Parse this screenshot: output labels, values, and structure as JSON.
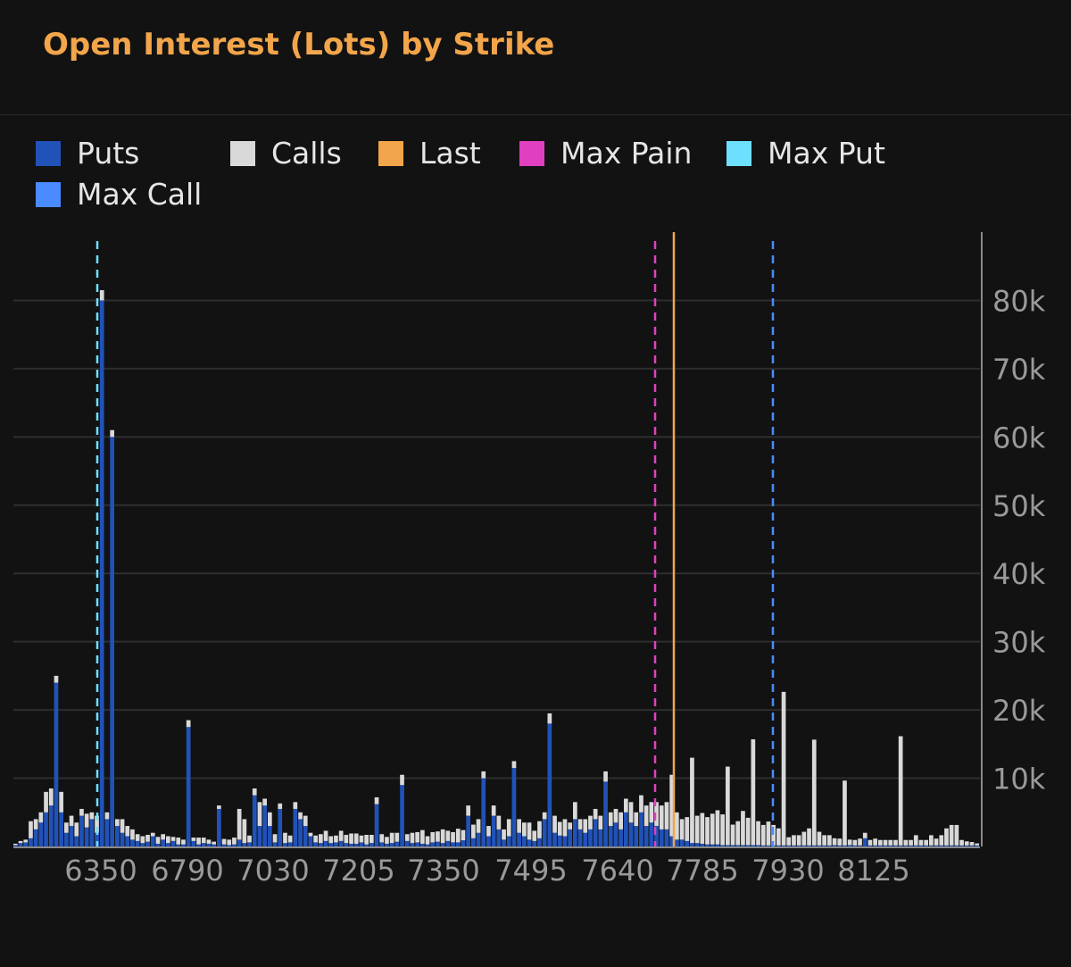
{
  "title": "Open Interest (Lots) by Strike",
  "legend": [
    {
      "label": "Puts",
      "color": "#2152b8"
    },
    {
      "label": "Calls",
      "color": "#d9d9d9"
    },
    {
      "label": "Last",
      "color": "#f2a54a"
    },
    {
      "label": "Max Pain",
      "color": "#e040c0"
    },
    {
      "label": "Max Put",
      "color": "#6de0ff"
    },
    {
      "label": "Max Call",
      "color": "#4a8cff"
    }
  ],
  "chart_data": {
    "type": "bar",
    "stacked": true,
    "title": "Open Interest (Lots) by Strike",
    "xlabel": "",
    "ylabel": "",
    "ylim": [
      0,
      90000
    ],
    "y_ticks": [
      "10k",
      "20k",
      "30k",
      "40k",
      "50k",
      "60k",
      "70k",
      "80k"
    ],
    "y_tick_values": [
      10000,
      20000,
      30000,
      40000,
      50000,
      60000,
      70000,
      80000
    ],
    "x_tick_labels": [
      "6350",
      "6790",
      "7030",
      "7205",
      "7350",
      "7495",
      "7640",
      "7785",
      "7930",
      "8125"
    ],
    "grid": true,
    "legend_position": "top",
    "series": [
      {
        "name": "Puts",
        "color": "#2152b8",
        "values": [
          200,
          500,
          600,
          1200,
          2500,
          3500,
          5000,
          6000,
          24000,
          5000,
          2000,
          3000,
          1500,
          4500,
          2800,
          4000,
          2000,
          80000,
          4000,
          60000,
          3000,
          2000,
          1500,
          1000,
          800,
          500,
          700,
          1500,
          400,
          1000,
          500,
          800,
          300,
          300,
          17500,
          800,
          300,
          500,
          400,
          300,
          5500,
          300,
          200,
          300,
          1000,
          500,
          600,
          7500,
          3000,
          6000,
          3000,
          600,
          5500,
          500,
          600,
          5500,
          4000,
          3000,
          1500,
          600,
          500,
          800,
          500,
          600,
          800,
          500,
          400,
          400,
          600,
          300,
          500,
          6200,
          600,
          400,
          500,
          700,
          9000,
          800,
          500,
          600,
          400,
          300,
          600,
          700,
          500,
          800,
          600,
          600,
          900,
          4500,
          1200,
          2000,
          10000,
          1500,
          4500,
          2500,
          1000,
          1500,
          11500,
          2000,
          1500,
          1000,
          800,
          1200,
          4000,
          18000,
          2000,
          1600,
          1500,
          2500,
          4000,
          2500,
          2000,
          2500,
          4000,
          2500,
          9500,
          3000,
          3500,
          2500,
          5000,
          3500,
          3000,
          5000,
          3000,
          3500,
          3000,
          2500,
          2500,
          1500,
          1000,
          1000,
          800,
          500,
          500,
          400,
          300,
          300,
          300,
          200,
          200,
          200,
          200,
          200,
          200,
          200,
          200,
          150,
          150,
          150,
          150,
          150,
          150,
          150,
          150,
          150,
          150,
          150,
          150,
          150,
          150,
          200,
          150,
          150,
          200,
          150,
          150,
          1200,
          150,
          150,
          150,
          150,
          150,
          150,
          150,
          150,
          150,
          150,
          150,
          150,
          150,
          150,
          150,
          150,
          150,
          150,
          150,
          150,
          150,
          150
        ]
      },
      {
        "name": "Calls",
        "color": "#d9d9d9",
        "values": [
          200,
          300,
          400,
          2500,
          1500,
          1500,
          3000,
          2500,
          1000,
          3000,
          1500,
          1500,
          2000,
          1000,
          2000,
          1000,
          2500,
          1500,
          1000,
          1000,
          1000,
          2000,
          1500,
          1500,
          1000,
          1000,
          1000,
          500,
          1000,
          800,
          1000,
          600,
          1000,
          700,
          1000,
          500,
          1000,
          800,
          600,
          400,
          500,
          800,
          800,
          1000,
          4500,
          3500,
          1000,
          1000,
          3500,
          1000,
          2000,
          1200,
          800,
          1500,
          1000,
          1000,
          1000,
          1500,
          500,
          1000,
          1300,
          1500,
          1000,
          1000,
          1500,
          1200,
          1500,
          1500,
          1000,
          1400,
          1200,
          1000,
          1200,
          1000,
          1500,
          1300,
          1500,
          1000,
          1500,
          1500,
          2000,
          1200,
          1500,
          1500,
          2000,
          1500,
          1500,
          2000,
          1500,
          1500,
          2000,
          2000,
          1000,
          1500,
          1500,
          2000,
          1500,
          2500,
          1000,
          2000,
          2000,
          2500,
          1500,
          2500,
          1000,
          1500,
          2500,
          2000,
          2500,
          1000,
          2500,
          1500,
          2000,
          2000,
          1500,
          2000,
          1500,
          2000,
          2000,
          2500,
          2000,
          3000,
          2000,
          2500,
          3000,
          3000,
          3500,
          3500,
          4000,
          9000,
          4000,
          3000,
          3500,
          12500,
          4000,
          4500,
          4000,
          4500,
          5000,
          4500,
          11500,
          3000,
          3500,
          5000,
          4000,
          15500,
          3500,
          3000,
          3500,
          3000,
          2500,
          22500,
          1200,
          1500,
          1500,
          2000,
          2500,
          15500,
          2000,
          1500,
          1500,
          1000,
          1000,
          9500,
          800,
          800,
          1000,
          800,
          800,
          1000,
          800,
          800,
          800,
          800,
          16000,
          800,
          800,
          1500,
          800,
          800,
          1500,
          1000,
          1500,
          2500,
          3000,
          3000,
          800,
          600,
          500,
          300,
          300
        ]
      }
    ],
    "markers": [
      {
        "name": "Max Put",
        "strike": "6350"
      },
      {
        "name": "Max Pain",
        "strike": "7720"
      },
      {
        "name": "Last",
        "strike": "7740"
      },
      {
        "name": "Max Call",
        "strike": "7925"
      }
    ]
  }
}
